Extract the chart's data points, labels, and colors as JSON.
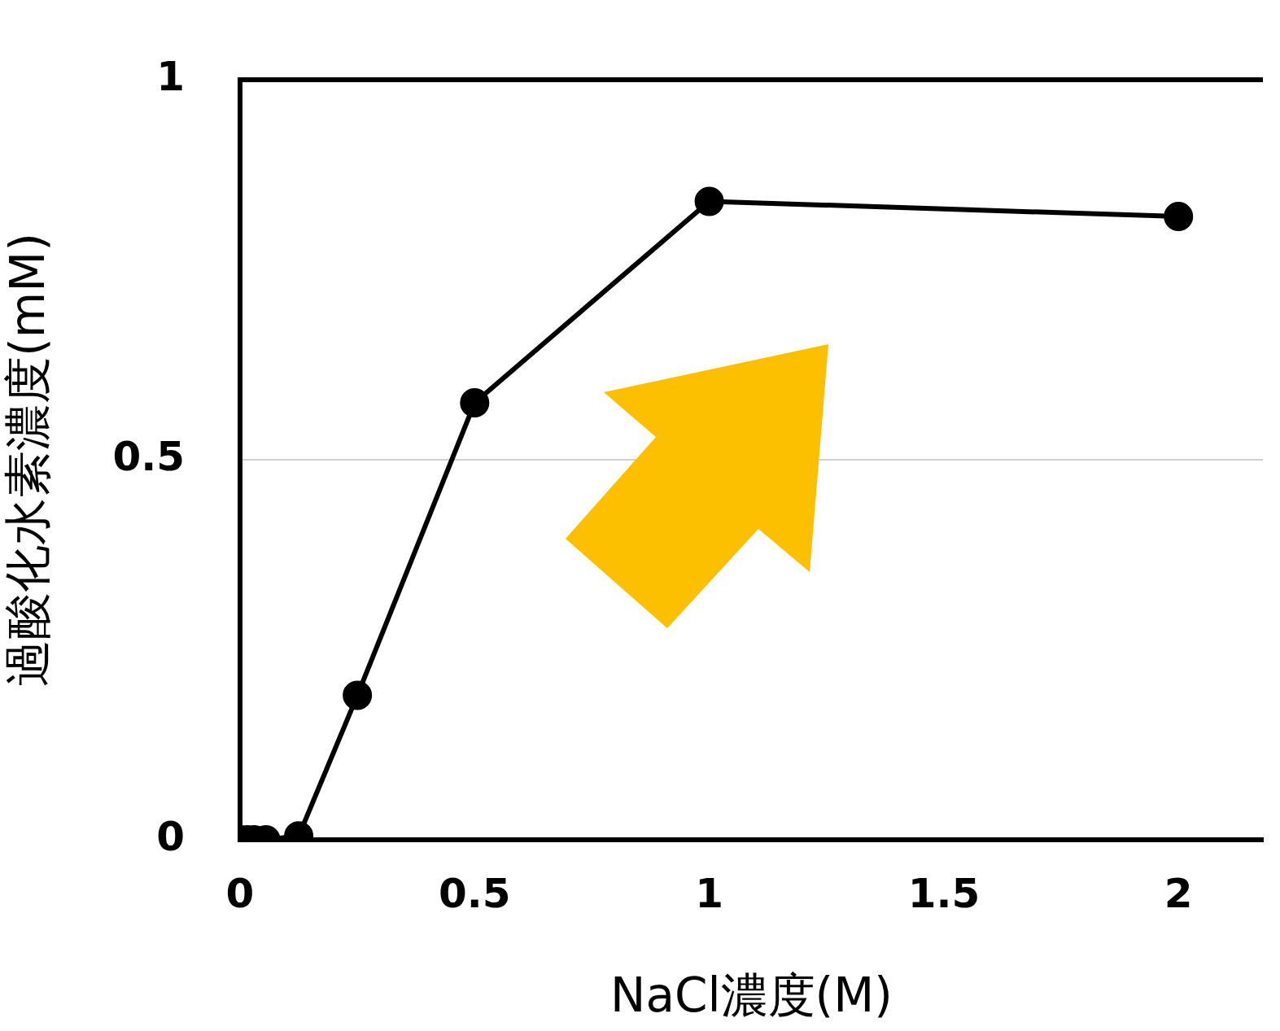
{
  "chart_data": {
    "type": "line",
    "xlabel": "NaCl濃度(M)",
    "ylabel": "過酸化水素濃度(mM)",
    "series": [
      {
        "color": "#000000",
        "x": [
          0,
          0.015,
          0.03,
          0.055,
          0.125,
          0.25,
          0.5,
          1,
          2
        ],
        "values": [
          0,
          0,
          0,
          0,
          0.005,
          0.19,
          0.575,
          0.84,
          0.82
        ]
      }
    ],
    "xlim": [
      0,
      2.18
    ],
    "xticks": [
      0,
      0.5,
      1,
      1.5,
      2
    ],
    "ylim": [
      0,
      1
    ],
    "yticks": [
      0,
      0.5,
      1
    ],
    "grid": "y",
    "legend": false,
    "marker": "circle",
    "line_style": "solid"
  }
}
